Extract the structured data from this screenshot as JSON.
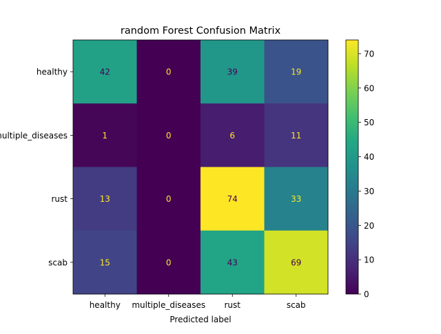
{
  "chart_data": {
    "type": "heatmap",
    "title": "random Forest Confusion Matrix",
    "xlabel": "Predicted label",
    "ylabel": "",
    "x_categories": [
      "healthy",
      "multiple_diseases",
      "rust",
      "scab"
    ],
    "y_categories": [
      "healthy",
      "multiple_diseases",
      "rust",
      "scab"
    ],
    "values": [
      [
        42,
        0,
        39,
        19
      ],
      [
        1,
        0,
        6,
        11
      ],
      [
        13,
        0,
        74,
        33
      ],
      [
        15,
        0,
        43,
        69
      ]
    ],
    "colormap": "viridis",
    "vmin": 0,
    "vmax": 74,
    "colorbar_ticks": [
      0,
      10,
      20,
      30,
      40,
      50,
      60,
      70
    ],
    "grid": false,
    "text_color_light": "#fde725",
    "text_color_dark": "#440154"
  }
}
